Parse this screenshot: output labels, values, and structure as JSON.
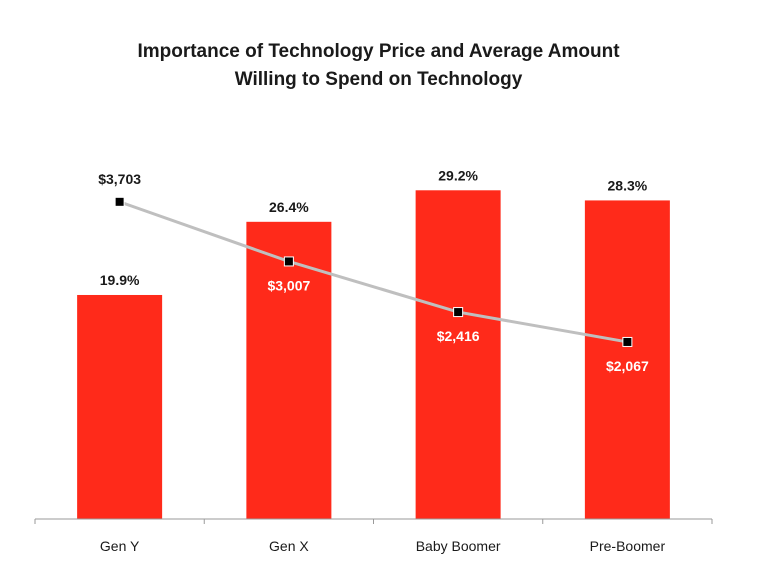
{
  "chart_data": {
    "type": "bar",
    "title_lines": [
      "Importance of Technology Price and Average Amount",
      "Willing to Spend on Technology"
    ],
    "categories": [
      "Gen Y",
      "Gen X",
      "Baby Boomer",
      "Pre-Boomer"
    ],
    "series": [
      {
        "name": "Importance of Technology Price",
        "type": "bar",
        "values": [
          19.9,
          26.4,
          29.2,
          28.3
        ],
        "labels": [
          "19.9%",
          "26.4%",
          "29.2%",
          "28.3%"
        ],
        "color": "#ff2a1a"
      },
      {
        "name": "Average Amount Willing to Spend on Technology",
        "type": "line",
        "values": [
          3703,
          3007,
          2416,
          2067
        ],
        "labels": [
          "$3,703",
          "$3,007",
          "$2,416",
          "$2,067"
        ],
        "color": "#bfbfbf",
        "marker_color": "#000000"
      }
    ],
    "bar_axis_range": [
      0,
      35
    ],
    "line_axis_range": [
      0,
      4600
    ],
    "legend": "none",
    "grid": false
  }
}
